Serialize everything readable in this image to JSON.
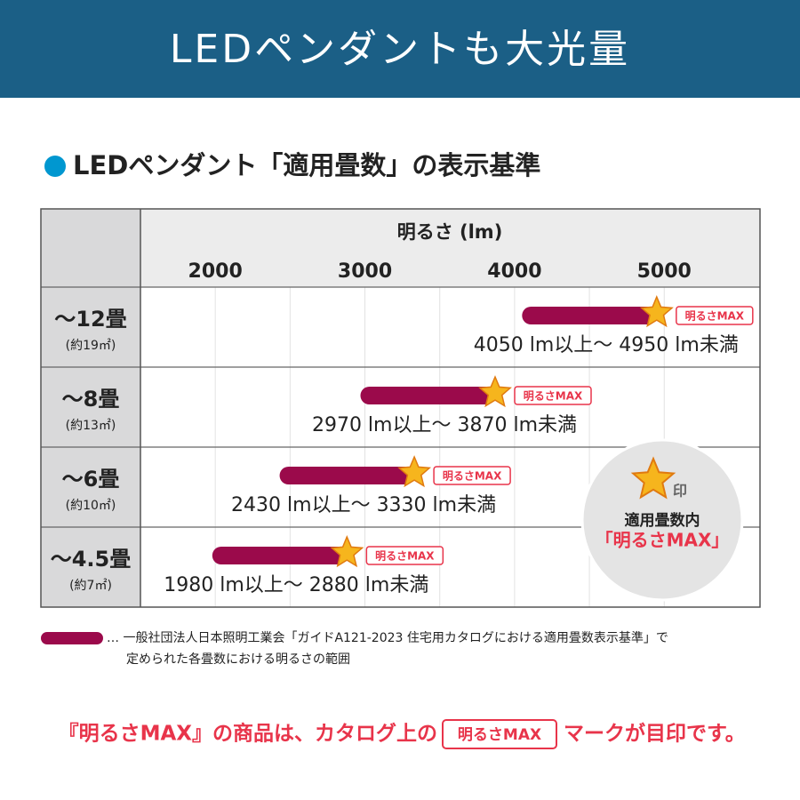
{
  "header": {
    "title": "LEDペンダントも大光量"
  },
  "chart_data": {
    "type": "range-bar",
    "title": "LEDペンダント「適用畳数」の表示基準",
    "x_label": "明るさ (lm)",
    "categories": [
      "〜12畳",
      "〜8畳",
      "〜6畳",
      "〜4.5畳"
    ],
    "category_notes": [
      "(約19㎡)",
      "(約13㎡)",
      "(約10㎡)",
      "(約7㎡)"
    ],
    "series": [
      {
        "color": "#9b0a4b",
        "low": [
          4050,
          2970,
          2430,
          1980
        ],
        "high": [
          4950,
          3870,
          3330,
          2880
        ],
        "value_labels": [
          "4050 lm以上〜 4950 lm未満",
          "2970 lm以上〜 3870 lm未満",
          "2430 lm以上〜 3330 lm未満",
          "1980 lm以上〜 2880 lm未満"
        ]
      }
    ],
    "marker_label": "明るさMAX",
    "xlim": [
      1500,
      5640
    ],
    "xticks": [
      2000,
      3000,
      4000,
      5000
    ],
    "xgrid": [
      2000,
      2500,
      3000,
      3500,
      4000,
      4500,
      5000
    ],
    "note": [
      "… 一般社団法人日本照明工業会「ガイドA121-2023 住宅用カタログにおける適用畳数表示基準」で",
      "定められた各畳数における明るさの範囲"
    ],
    "stamp": {
      "mark": "印",
      "line1": "適用畳数内",
      "line2": "「明るさMAX」"
    }
  },
  "footer": {
    "before": "『明るさMAX』の商品は、カタログ上の",
    "after": "マークが目印です。"
  }
}
